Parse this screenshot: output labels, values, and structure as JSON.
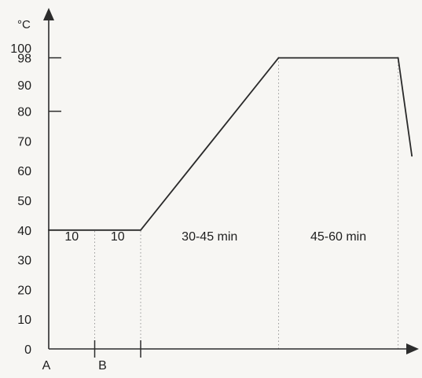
{
  "chart_data": {
    "type": "line",
    "y_unit": "°C",
    "ylim": [
      0,
      100
    ],
    "y_ticks": [
      {
        "value": 0,
        "label": "0",
        "tick": false
      },
      {
        "value": 10,
        "label": "10",
        "tick": false
      },
      {
        "value": 20,
        "label": "20",
        "tick": false
      },
      {
        "value": 30,
        "label": "30",
        "tick": false
      },
      {
        "value": 40,
        "label": "40",
        "tick": false
      },
      {
        "value": 50,
        "label": "50",
        "tick": false
      },
      {
        "value": 60,
        "label": "60",
        "tick": false
      },
      {
        "value": 70,
        "label": "70",
        "tick": false
      },
      {
        "value": 80,
        "label": "80",
        "tick": true
      },
      {
        "value": 90,
        "label": "90",
        "tick": false
      },
      {
        "value": 98,
        "label": "98",
        "tick": true
      },
      {
        "value": 100,
        "label": "100",
        "tick": false
      }
    ],
    "x_markers": [
      {
        "x": 0,
        "label": "A",
        "tick": false
      },
      {
        "x": 10,
        "label": "B",
        "tick": true
      },
      {
        "x": 20,
        "label": "",
        "tick": true
      }
    ],
    "series": [
      {
        "points": [
          {
            "x": 0,
            "y": 40
          },
          {
            "x": 20,
            "y": 40
          },
          {
            "x": 50,
            "y": 98
          },
          {
            "x": 76,
            "y": 98
          },
          {
            "x": 79,
            "y": 65
          }
        ]
      }
    ],
    "phase_dividers": [
      10,
      20,
      50,
      76
    ],
    "segments": [
      {
        "from": 0,
        "to": 10,
        "label": "10"
      },
      {
        "from": 10,
        "to": 20,
        "label": "10"
      },
      {
        "from": 20,
        "to": 50,
        "label": "30-45 min"
      },
      {
        "from": 50,
        "to": 76,
        "label": "45-60 min"
      }
    ],
    "grid": false,
    "legend": "none"
  }
}
